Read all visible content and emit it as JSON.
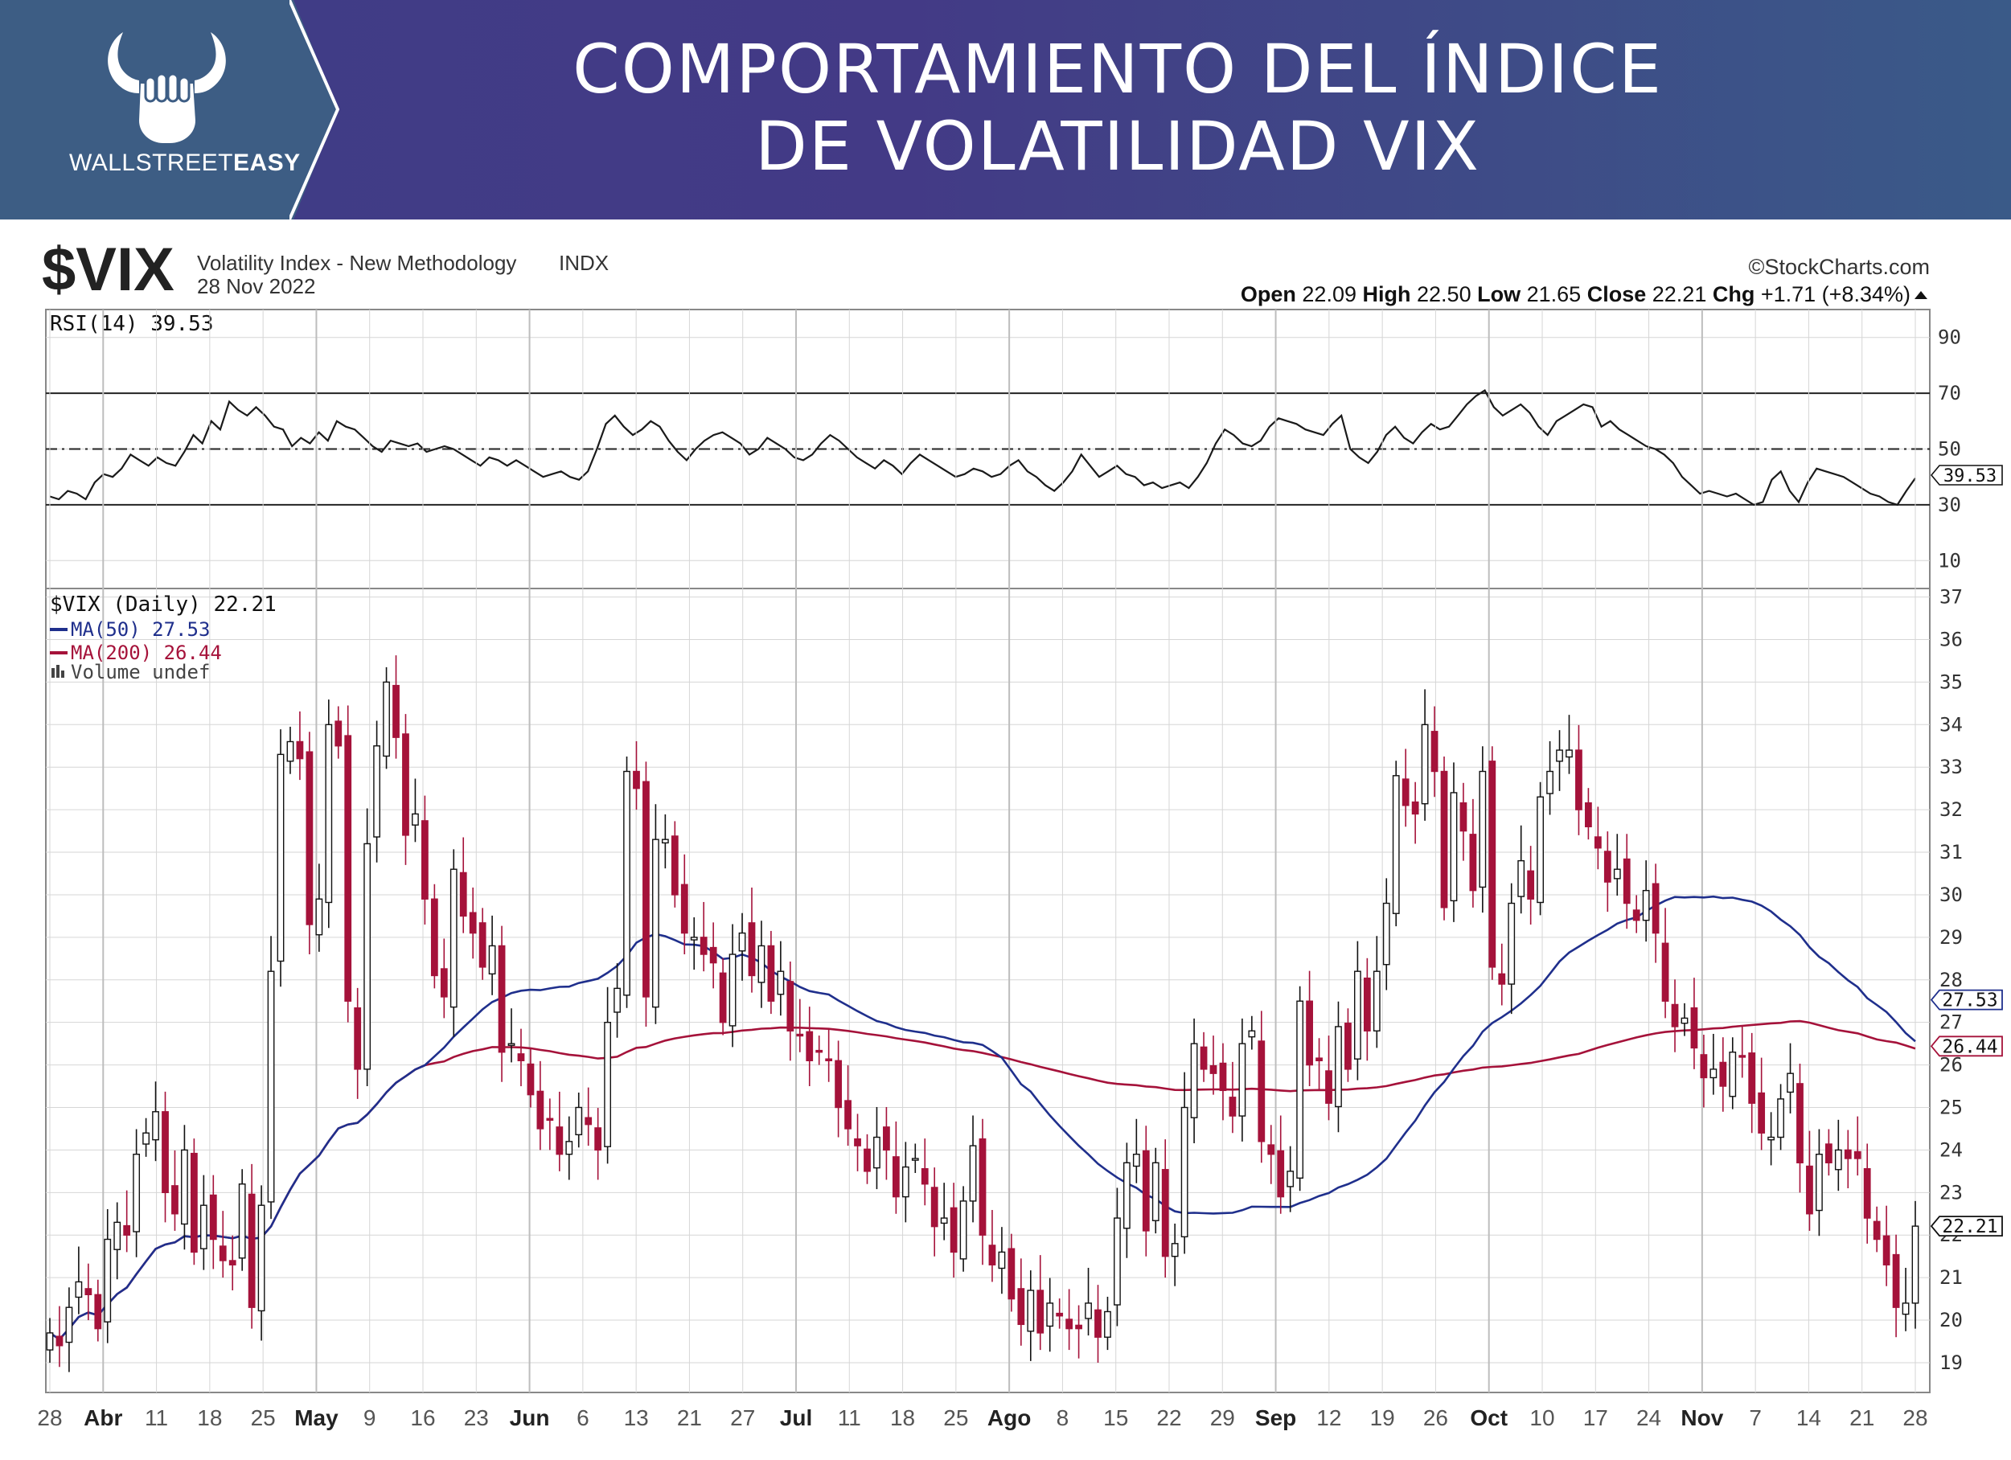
{
  "banner": {
    "title_line1": "COMPORTAMIENTO DEL ÍNDICE",
    "title_line2": "DE VOLATILIDAD VIX",
    "logo_text_light": "WALLSTREET",
    "logo_text_bold": "EASY",
    "logo_icon": "bull-horns-hand-icon"
  },
  "header": {
    "symbol": "$VIX",
    "name": "Volatility Index - New Methodology",
    "exchange": "INDX",
    "date": "28 Nov 2022",
    "source": "©StockCharts.com",
    "ohlc": {
      "open_label": "Open",
      "open": "22.09",
      "high_label": "High",
      "high": "22.50",
      "low_label": "Low",
      "low": "21.65",
      "close_label": "Close",
      "close": "22.21",
      "chg_label": "Chg",
      "chg": "+1.71 (+8.34%)"
    }
  },
  "colors": {
    "up_candle": "#ffffff",
    "down_candle": "#a5123a",
    "ma50": "#1f2f8c",
    "ma200": "#a5123a",
    "grid": "#d6d6d6",
    "banner_bg": "#41398a"
  },
  "chart_data": [
    {
      "type": "line",
      "title": "RSI(14) 39.53",
      "current_label": "39.53",
      "ylim": [
        0,
        100
      ],
      "yticks": [
        10,
        30,
        50,
        70,
        90
      ],
      "reference_lines": [
        30,
        50,
        70
      ],
      "values": [
        33,
        32,
        35,
        34,
        32,
        38,
        41,
        40,
        43,
        48,
        46,
        44,
        47,
        45,
        44,
        49,
        55,
        52,
        60,
        57,
        67,
        64,
        62,
        65,
        62,
        58,
        57,
        51,
        54,
        52,
        56,
        53,
        60,
        58,
        57,
        54,
        51,
        49,
        53,
        52,
        51,
        52,
        49,
        50,
        51,
        50,
        48,
        46,
        44,
        47,
        46,
        44,
        46,
        44,
        42,
        40,
        41,
        42,
        40,
        39,
        42,
        50,
        59,
        62,
        58,
        55,
        57,
        60,
        58,
        53,
        49,
        46,
        50,
        53,
        55,
        56,
        54,
        52,
        48,
        50,
        54,
        52,
        50,
        47,
        46,
        48,
        52,
        55,
        53,
        50,
        47,
        45,
        43,
        46,
        44,
        41,
        45,
        48,
        46,
        44,
        42,
        40,
        41,
        43,
        42,
        40,
        41,
        44,
        46,
        42,
        40,
        37,
        35,
        38,
        42,
        48,
        44,
        40,
        42,
        44,
        41,
        40,
        37,
        38,
        36,
        37,
        38,
        36,
        40,
        45,
        52,
        57,
        55,
        52,
        51,
        53,
        58,
        61,
        60,
        59,
        57,
        56,
        55,
        59,
        62,
        50,
        47,
        45,
        49,
        55,
        58,
        54,
        52,
        56,
        59,
        57,
        58,
        62,
        66,
        69,
        71,
        65,
        62,
        64,
        66,
        63,
        58,
        55,
        60,
        62,
        64,
        66,
        65,
        58,
        60,
        57,
        55,
        53,
        51,
        50,
        48,
        45,
        40,
        37,
        34,
        35,
        34,
        33,
        34,
        32,
        30,
        31,
        39,
        42,
        35,
        31,
        38,
        43,
        42,
        41,
        40,
        38,
        36,
        34,
        33,
        31,
        30,
        35,
        39.53
      ],
      "x_labels": [
        "28",
        "Abr",
        "11",
        "18",
        "25",
        "May",
        "9",
        "16",
        "23",
        "Jun",
        "6",
        "13",
        "21",
        "27",
        "Jul",
        "11",
        "18",
        "25",
        "Ago",
        "8",
        "15",
        "22",
        "29",
        "Sep",
        "12",
        "19",
        "26",
        "Oct",
        "10",
        "17",
        "24",
        "Nov",
        "7",
        "14",
        "21",
        "28"
      ]
    },
    {
      "type": "candlestick",
      "title": "$VIX (Daily) 22.21",
      "legend": [
        {
          "name": "MA(50) 27.53",
          "color": "#1f2f8c"
        },
        {
          "name": "MA(200) 26.44",
          "color": "#a5123a"
        },
        {
          "name": "Volume undef",
          "color": "#444444"
        }
      ],
      "ylim": [
        18.3,
        37.2
      ],
      "yticks": [
        19,
        20,
        21,
        22,
        23,
        24,
        25,
        26,
        27,
        28,
        29,
        30,
        31,
        32,
        33,
        34,
        35,
        36,
        37
      ],
      "price_labels": {
        "ma50": "27.53",
        "ma200": "26.44",
        "close": "22.21"
      },
      "close": [
        19.7,
        19.4,
        20.3,
        20.9,
        20.6,
        19.8,
        21.9,
        22.3,
        22.0,
        23.9,
        24.4,
        24.9,
        23.0,
        22.5,
        24.0,
        21.6,
        22.7,
        21.9,
        21.4,
        21.3,
        23.2,
        20.3,
        22.7,
        28.2,
        33.3,
        33.6,
        33.2,
        29.3,
        29.9,
        34.0,
        33.5,
        27.5,
        25.9,
        31.2,
        33.5,
        35.0,
        33.7,
        31.4,
        31.9,
        29.9,
        28.1,
        27.6,
        30.6,
        29.5,
        29.1,
        28.3,
        28.8,
        26.3,
        26.5,
        26.1,
        25.3,
        24.5,
        24.7,
        23.9,
        24.2,
        25.0,
        24.6,
        24.0,
        27.0,
        27.8,
        32.9,
        32.5,
        27.6,
        31.3,
        31.3,
        30.0,
        29.1,
        29.0,
        28.6,
        28.4,
        27.0,
        28.6,
        29.1,
        28.1,
        28.8,
        27.5,
        28.2,
        26.8,
        26.7,
        26.1,
        26.3,
        26.1,
        25.0,
        24.5,
        24.1,
        23.5,
        24.3,
        24.0,
        22.9,
        23.6,
        23.8,
        23.2,
        22.2,
        22.4,
        21.6,
        22.8,
        24.1,
        22.0,
        21.3,
        21.6,
        20.5,
        19.9,
        20.7,
        19.7,
        20.4,
        20.1,
        19.8,
        19.8,
        20.4,
        19.6,
        20.2,
        22.4,
        23.7,
        23.9,
        22.1,
        23.7,
        21.5,
        21.8,
        25.0,
        26.5,
        25.9,
        25.8,
        25.4,
        24.8,
        26.5,
        26.8,
        24.2,
        23.9,
        22.9,
        23.5,
        27.5,
        26.0,
        26.1,
        25.1,
        26.9,
        25.9,
        28.2,
        26.8,
        28.2,
        29.8,
        32.8,
        32.1,
        31.9,
        34.0,
        32.9,
        29.7,
        32.4,
        31.5,
        30.1,
        32.9,
        28.3,
        27.9,
        29.8,
        30.8,
        29.9,
        32.3,
        32.9,
        33.4,
        33.4,
        32.0,
        31.6,
        31.1,
        30.3,
        30.6,
        29.8,
        29.4,
        30.1,
        29.1,
        27.5,
        26.9,
        27.1,
        26.4,
        25.7,
        25.9,
        25.5,
        26.3,
        26.2,
        25.1,
        24.4,
        24.3,
        25.2,
        25.8,
        23.7,
        22.5,
        23.9,
        23.7,
        24.0,
        23.8,
        23.8,
        22.4,
        21.9,
        21.3,
        20.3,
        20.4,
        22.21
      ]
    }
  ]
}
